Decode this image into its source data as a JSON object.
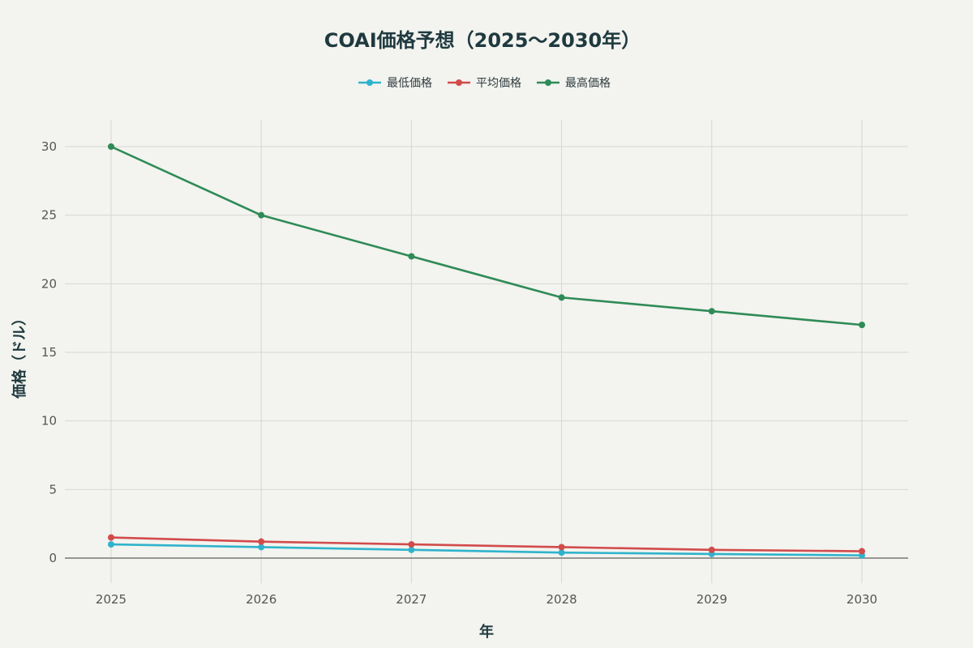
{
  "chart_data": {
    "type": "line",
    "title": "COAI価格予想（2025〜2030年）",
    "xlabel": "年",
    "ylabel": "価格（ドル）",
    "x": [
      "2025",
      "2026",
      "2027",
      "2028",
      "2029",
      "2030"
    ],
    "ylim": [
      -1.5,
      32
    ],
    "yticks": [
      0,
      5,
      10,
      15,
      20,
      25,
      30
    ],
    "grid": true,
    "legend_position": "top-center",
    "series": [
      {
        "name": "最低価格",
        "color": "#2fb3cc",
        "values": [
          1.0,
          0.8,
          0.6,
          0.4,
          0.3,
          0.2
        ]
      },
      {
        "name": "平均価格",
        "color": "#d24b4b",
        "values": [
          1.5,
          1.2,
          1.0,
          0.8,
          0.6,
          0.5
        ]
      },
      {
        "name": "最高価格",
        "color": "#2e8b57",
        "values": [
          30,
          25,
          22,
          19,
          18,
          17
        ]
      }
    ]
  }
}
